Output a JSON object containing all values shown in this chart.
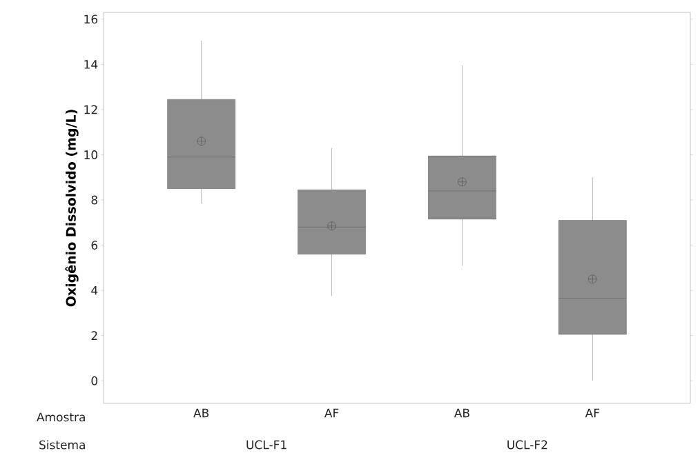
{
  "chart_data": {
    "type": "box",
    "ylabel": "Oxigênio Dissolvido (mg/L)",
    "categories": [
      "AB",
      "AF",
      "AB",
      "AF"
    ],
    "color": "#8c8c8c",
    "boxes": [
      {
        "low": 7.85,
        "q1": 8.5,
        "median": 9.9,
        "q3": 12.45,
        "high": 15.05,
        "mean": 10.6
      },
      {
        "low": 3.75,
        "q1": 5.6,
        "median": 6.8,
        "q3": 8.45,
        "high": 10.3,
        "mean": 6.85
      },
      {
        "low": 5.1,
        "q1": 7.15,
        "median": 8.4,
        "q3": 9.95,
        "high": 13.95,
        "mean": 8.8
      },
      {
        "low": 0.0,
        "q1": 2.05,
        "median": 3.65,
        "q3": 7.1,
        "high": 9.0,
        "mean": 4.5
      }
    ],
    "ylim": [
      -1,
      16.3
    ],
    "yticks": [
      0,
      2,
      4,
      6,
      8,
      10,
      12,
      14,
      16
    ],
    "grid": false,
    "annotations": [
      "Amostra",
      "Sistema",
      "UCL-F1",
      "UCL-F2"
    ]
  }
}
